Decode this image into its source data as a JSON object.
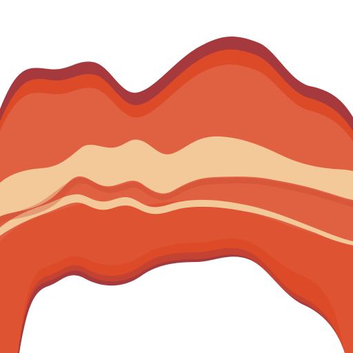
{
  "image": {
    "subject": "bacon-strip-icon",
    "background_color": "#ffffff",
    "colors": {
      "outline": "#a6393d",
      "outer_meat": "#dc4a28",
      "inner_meat": "#e06142",
      "fat": "#f4c99a"
    }
  }
}
